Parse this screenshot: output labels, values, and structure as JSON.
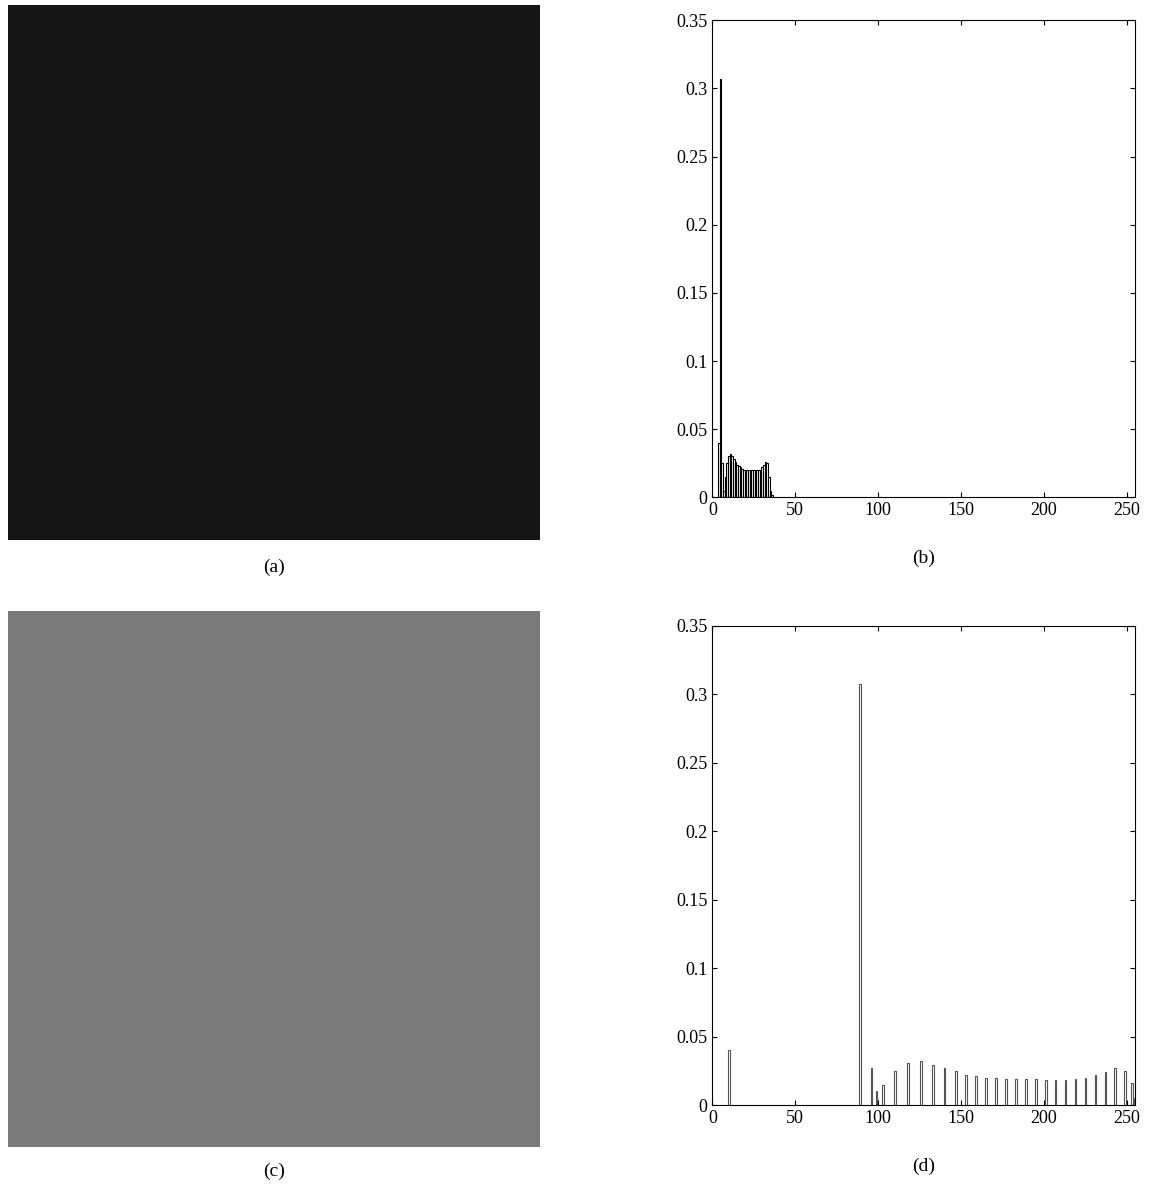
{
  "images": [
    {
      "caption": "(a)"
    },
    {
      "caption": "(c)"
    }
  ],
  "chart_data": [
    {
      "type": "bar",
      "xlabel": "(b)",
      "color": "#000000",
      "x": [
        4,
        5,
        6,
        7,
        8,
        9,
        10,
        11,
        12,
        13,
        14,
        15,
        16,
        17,
        18,
        19,
        20,
        21,
        22,
        23,
        24,
        25,
        26,
        27,
        28,
        29,
        30,
        31,
        32,
        33,
        34,
        35,
        36
      ],
      "values": [
        0.04,
        0.307,
        0.025,
        0.005,
        0.015,
        0.025,
        0.03,
        0.032,
        0.03,
        0.028,
        0.026,
        0.024,
        0.023,
        0.022,
        0.021,
        0.02,
        0.02,
        0.02,
        0.02,
        0.02,
        0.02,
        0.02,
        0.02,
        0.02,
        0.02,
        0.02,
        0.022,
        0.024,
        0.026,
        0.025,
        0.015,
        0.005,
        0.002
      ],
      "xlim": [
        0,
        255
      ],
      "xticks": [
        0,
        50,
        100,
        150,
        200,
        250
      ],
      "ylim": [
        0,
        0.35
      ],
      "yticks": [
        0,
        0.05,
        0.1,
        0.15,
        0.2,
        0.25,
        0.3,
        0.35
      ]
    },
    {
      "type": "bar",
      "xlabel": "(d)",
      "color": "#555555",
      "x": [
        10,
        89,
        96,
        99,
        103,
        110,
        118,
        126,
        133,
        140,
        147,
        153,
        159,
        165,
        171,
        177,
        183,
        189,
        195,
        201,
        207,
        213,
        219,
        225,
        231,
        237,
        243,
        249,
        253,
        255
      ],
      "values": [
        0.04,
        0.307,
        0.027,
        0.01,
        0.015,
        0.025,
        0.031,
        0.032,
        0.029,
        0.027,
        0.025,
        0.022,
        0.021,
        0.02,
        0.02,
        0.019,
        0.019,
        0.019,
        0.019,
        0.018,
        0.018,
        0.018,
        0.019,
        0.02,
        0.022,
        0.024,
        0.027,
        0.025,
        0.016,
        0.005
      ],
      "xlim": [
        0,
        255
      ],
      "xticks": [
        0,
        50,
        100,
        150,
        200,
        250
      ],
      "ylim": [
        0,
        0.35
      ],
      "yticks": [
        0,
        0.05,
        0.1,
        0.15,
        0.2,
        0.25,
        0.3,
        0.35
      ]
    }
  ]
}
